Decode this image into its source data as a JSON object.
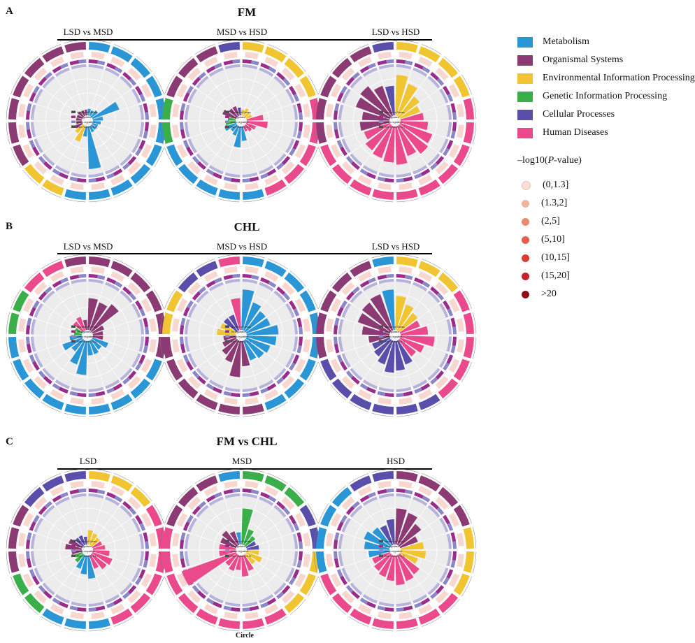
{
  "colors": {
    "metabolism": "#2a96d6",
    "organismal": "#8b3a74",
    "environmental": "#f1c431",
    "genetic": "#3aae49",
    "cellular": "#5a4eab",
    "human": "#ea4a8c",
    "up": "#9b2c8c",
    "down": "#8a86c8",
    "rich": "#e8a08c",
    "bg": "#ececec"
  },
  "legend": {
    "categories": [
      {
        "label": "Metabolism",
        "color": "#2a96d6"
      },
      {
        "label": "Organismal Systems",
        "color": "#8b3a74"
      },
      {
        "label": "Environmental Information Processing",
        "color": "#f1c431"
      },
      {
        "label": "Genetic Information Processing",
        "color": "#3aae49"
      },
      {
        "label": "Cellular Processes",
        "color": "#5a4eab"
      },
      {
        "label": "Human Diseases",
        "color": "#ea4a8c"
      }
    ],
    "pvalue_title_prefix": "–log10(",
    "pvalue_title_italic": "P",
    "pvalue_title_suffix": "-value)",
    "pvalue_bins": [
      {
        "label": "(0,1.3]",
        "color": "#fadfd6"
      },
      {
        "label": "(1.3,2]",
        "color": "#f1b49f"
      },
      {
        "label": "(2,5]",
        "color": "#ec8a6f"
      },
      {
        "label": "(5,10]",
        "color": "#e6604c"
      },
      {
        "label": "(10,15]",
        "color": "#de3a32"
      },
      {
        "label": "(15,20]",
        "color": "#c7212a"
      },
      {
        "label": ">20",
        "color": "#8a1116"
      }
    ]
  },
  "panels": [
    {
      "letter": "A",
      "title": "FM",
      "subtitles": [
        "LSD vs MSD",
        "MSD vs HSD",
        "LSD vs HSD"
      ]
    },
    {
      "letter": "B",
      "title": "CHL",
      "subtitles": [
        "LSD vs MSD",
        "MSD vs HSD",
        "LSD vs HSD"
      ]
    },
    {
      "letter": "C",
      "title": "FM vs CHL",
      "subtitles": [
        "LSD",
        "MSD",
        "HSD"
      ]
    }
  ],
  "inner_legend": {
    "items": [
      "Number of Genes",
      "Up-regulated",
      "Down-regulated"
    ],
    "rich_labels": [
      [
        "Rich Factor(0-0.3)",
        "Rich Factor(0-0.1)",
        "Rich Factor(0-0.1)"
      ],
      [
        "Rich Factor(0-0.1)",
        "Rich Factor(0-0.2)",
        "Rich Factor(0-0.1)"
      ],
      [
        "Rich Factor(0-0.1)",
        "Rich Factor(0-0.2)",
        "Rich Factor(0-0.2)"
      ]
    ]
  },
  "caption": "Circle",
  "chart_data": [
    {
      "type": "circular-bar",
      "panel": "A",
      "name": "LSD vs MSD",
      "categories": [
        "metabolism",
        "metabolism",
        "metabolism",
        "metabolism",
        "metabolism",
        "metabolism",
        "metabolism",
        "metabolism",
        "metabolism",
        "metabolism",
        "metabolism",
        "environmental",
        "environmental",
        "organismal",
        "organismal",
        "organismal",
        "organismal",
        "organismal",
        "organismal",
        "organismal"
      ],
      "values": [
        0.12,
        0.1,
        0.15,
        0.62,
        0.2,
        0.15,
        0.1,
        0.1,
        0.12,
        0.95,
        0.2,
        0.35,
        0.2,
        0.15,
        0.1,
        0.1,
        0.1,
        0.12,
        0.1,
        0.1
      ]
    },
    {
      "type": "circular-bar",
      "panel": "A",
      "name": "MSD vs HSD",
      "categories": [
        "environmental",
        "environmental",
        "environmental",
        "environmental",
        "human",
        "human",
        "human",
        "human",
        "human",
        "metabolism",
        "metabolism",
        "metabolism",
        "metabolism",
        "metabolism",
        "genetic",
        "genetic",
        "organismal",
        "organismal",
        "organismal",
        "cellular"
      ],
      "values": [
        0.1,
        0.15,
        0.1,
        0.1,
        0.35,
        0.45,
        0.2,
        0.15,
        0.1,
        0.3,
        0.45,
        0.2,
        0.15,
        0.25,
        0.2,
        0.15,
        0.3,
        0.2,
        0.2,
        0.15
      ]
    },
    {
      "type": "circular-bar",
      "panel": "A",
      "name": "LSD vs HSD",
      "categories": [
        "environmental",
        "environmental",
        "environmental",
        "environmental",
        "human",
        "human",
        "human",
        "human",
        "human",
        "human",
        "human",
        "human",
        "human",
        "human",
        "organismal",
        "organismal",
        "organismal",
        "organismal",
        "organismal",
        "cellular"
      ],
      "values": [
        0.9,
        0.75,
        0.55,
        0.45,
        0.5,
        0.6,
        0.75,
        0.8,
        0.7,
        0.85,
        0.8,
        0.75,
        0.7,
        0.6,
        0.65,
        0.6,
        0.8,
        0.85,
        0.7,
        0.65
      ]
    },
    {
      "type": "circular-bar",
      "panel": "B",
      "name": "LSD vs MSD",
      "categories": [
        "organismal",
        "organismal",
        "organismal",
        "organismal",
        "organismal",
        "organismal",
        "metabolism",
        "metabolism",
        "metabolism",
        "metabolism",
        "metabolism",
        "metabolism",
        "metabolism",
        "metabolism",
        "metabolism",
        "genetic",
        "genetic",
        "human",
        "human",
        "organismal"
      ],
      "values": [
        0.7,
        0.65,
        0.75,
        0.25,
        0.2,
        0.2,
        0.35,
        0.25,
        0.3,
        0.3,
        0.75,
        0.55,
        0.3,
        0.45,
        0.25,
        0.15,
        0.15,
        0.25,
        0.3,
        0.2
      ]
    },
    {
      "type": "circular-bar",
      "panel": "B",
      "name": "MSD vs HSD",
      "categories": [
        "metabolism",
        "metabolism",
        "metabolism",
        "metabolism",
        "metabolism",
        "metabolism",
        "metabolism",
        "metabolism",
        "metabolism",
        "organismal",
        "organismal",
        "organismal",
        "organismal",
        "organismal",
        "organismal",
        "environmental",
        "environmental",
        "cellular",
        "cellular",
        "human"
      ],
      "values": [
        0.9,
        0.65,
        0.55,
        0.55,
        0.7,
        0.65,
        0.55,
        0.5,
        0.45,
        0.55,
        0.8,
        0.5,
        0.4,
        0.3,
        0.25,
        0.4,
        0.35,
        0.35,
        0.35,
        0.7
      ]
    },
    {
      "type": "circular-bar",
      "panel": "B",
      "name": "LSD vs HSD",
      "categories": [
        "environmental",
        "environmental",
        "environmental",
        "human",
        "human",
        "human",
        "human",
        "human",
        "cellular",
        "cellular",
        "cellular",
        "cellular",
        "cellular",
        "cellular",
        "organismal",
        "organismal",
        "organismal",
        "organismal",
        "organismal",
        "metabolism"
      ],
      "values": [
        0.75,
        0.6,
        0.5,
        0.45,
        0.6,
        0.75,
        0.55,
        0.45,
        0.55,
        0.65,
        0.7,
        0.55,
        0.45,
        0.4,
        0.45,
        0.6,
        0.75,
        0.8,
        0.85,
        0.9
      ]
    },
    {
      "type": "circular-bar",
      "panel": "C",
      "name": "LSD",
      "categories": [
        "environmental",
        "environmental",
        "environmental",
        "human",
        "human",
        "human",
        "human",
        "human",
        "human",
        "metabolism",
        "metabolism",
        "metabolism",
        "genetic",
        "genetic",
        "organismal",
        "organismal",
        "organismal",
        "cellular",
        "cellular",
        "cellular"
      ],
      "values": [
        0.3,
        0.25,
        0.2,
        0.2,
        0.25,
        0.35,
        0.45,
        0.4,
        0.3,
        0.5,
        0.4,
        0.3,
        0.2,
        0.15,
        0.2,
        0.35,
        0.3,
        0.2,
        0.2,
        0.15
      ]
    },
    {
      "type": "circular-bar",
      "panel": "C",
      "name": "MSD",
      "categories": [
        "genetic",
        "genetic",
        "genetic",
        "cellular",
        "cellular",
        "environmental",
        "environmental",
        "environmental",
        "human",
        "human",
        "human",
        "human",
        "human",
        "human",
        "human",
        "human",
        "organismal",
        "organismal",
        "organismal",
        "metabolism"
      ],
      "values": [
        0.8,
        0.35,
        0.25,
        0.2,
        0.25,
        0.25,
        0.35,
        0.25,
        0.35,
        0.45,
        0.3,
        0.35,
        0.3,
        1.3,
        0.35,
        0.35,
        0.35,
        0.4,
        0.3,
        0.25
      ]
    },
    {
      "type": "circular-bar",
      "panel": "C",
      "name": "HSD",
      "categories": [
        "organismal",
        "organismal",
        "organismal",
        "organismal",
        "environmental",
        "environmental",
        "environmental",
        "human",
        "human",
        "human",
        "human",
        "human",
        "human",
        "human",
        "metabolism",
        "metabolism",
        "metabolism",
        "metabolism",
        "cellular",
        "cellular"
      ],
      "values": [
        0.8,
        0.75,
        0.6,
        0.4,
        0.5,
        0.55,
        0.4,
        0.55,
        0.6,
        0.65,
        0.55,
        0.5,
        0.45,
        0.4,
        0.45,
        0.55,
        0.6,
        0.5,
        0.45,
        0.55
      ]
    }
  ]
}
